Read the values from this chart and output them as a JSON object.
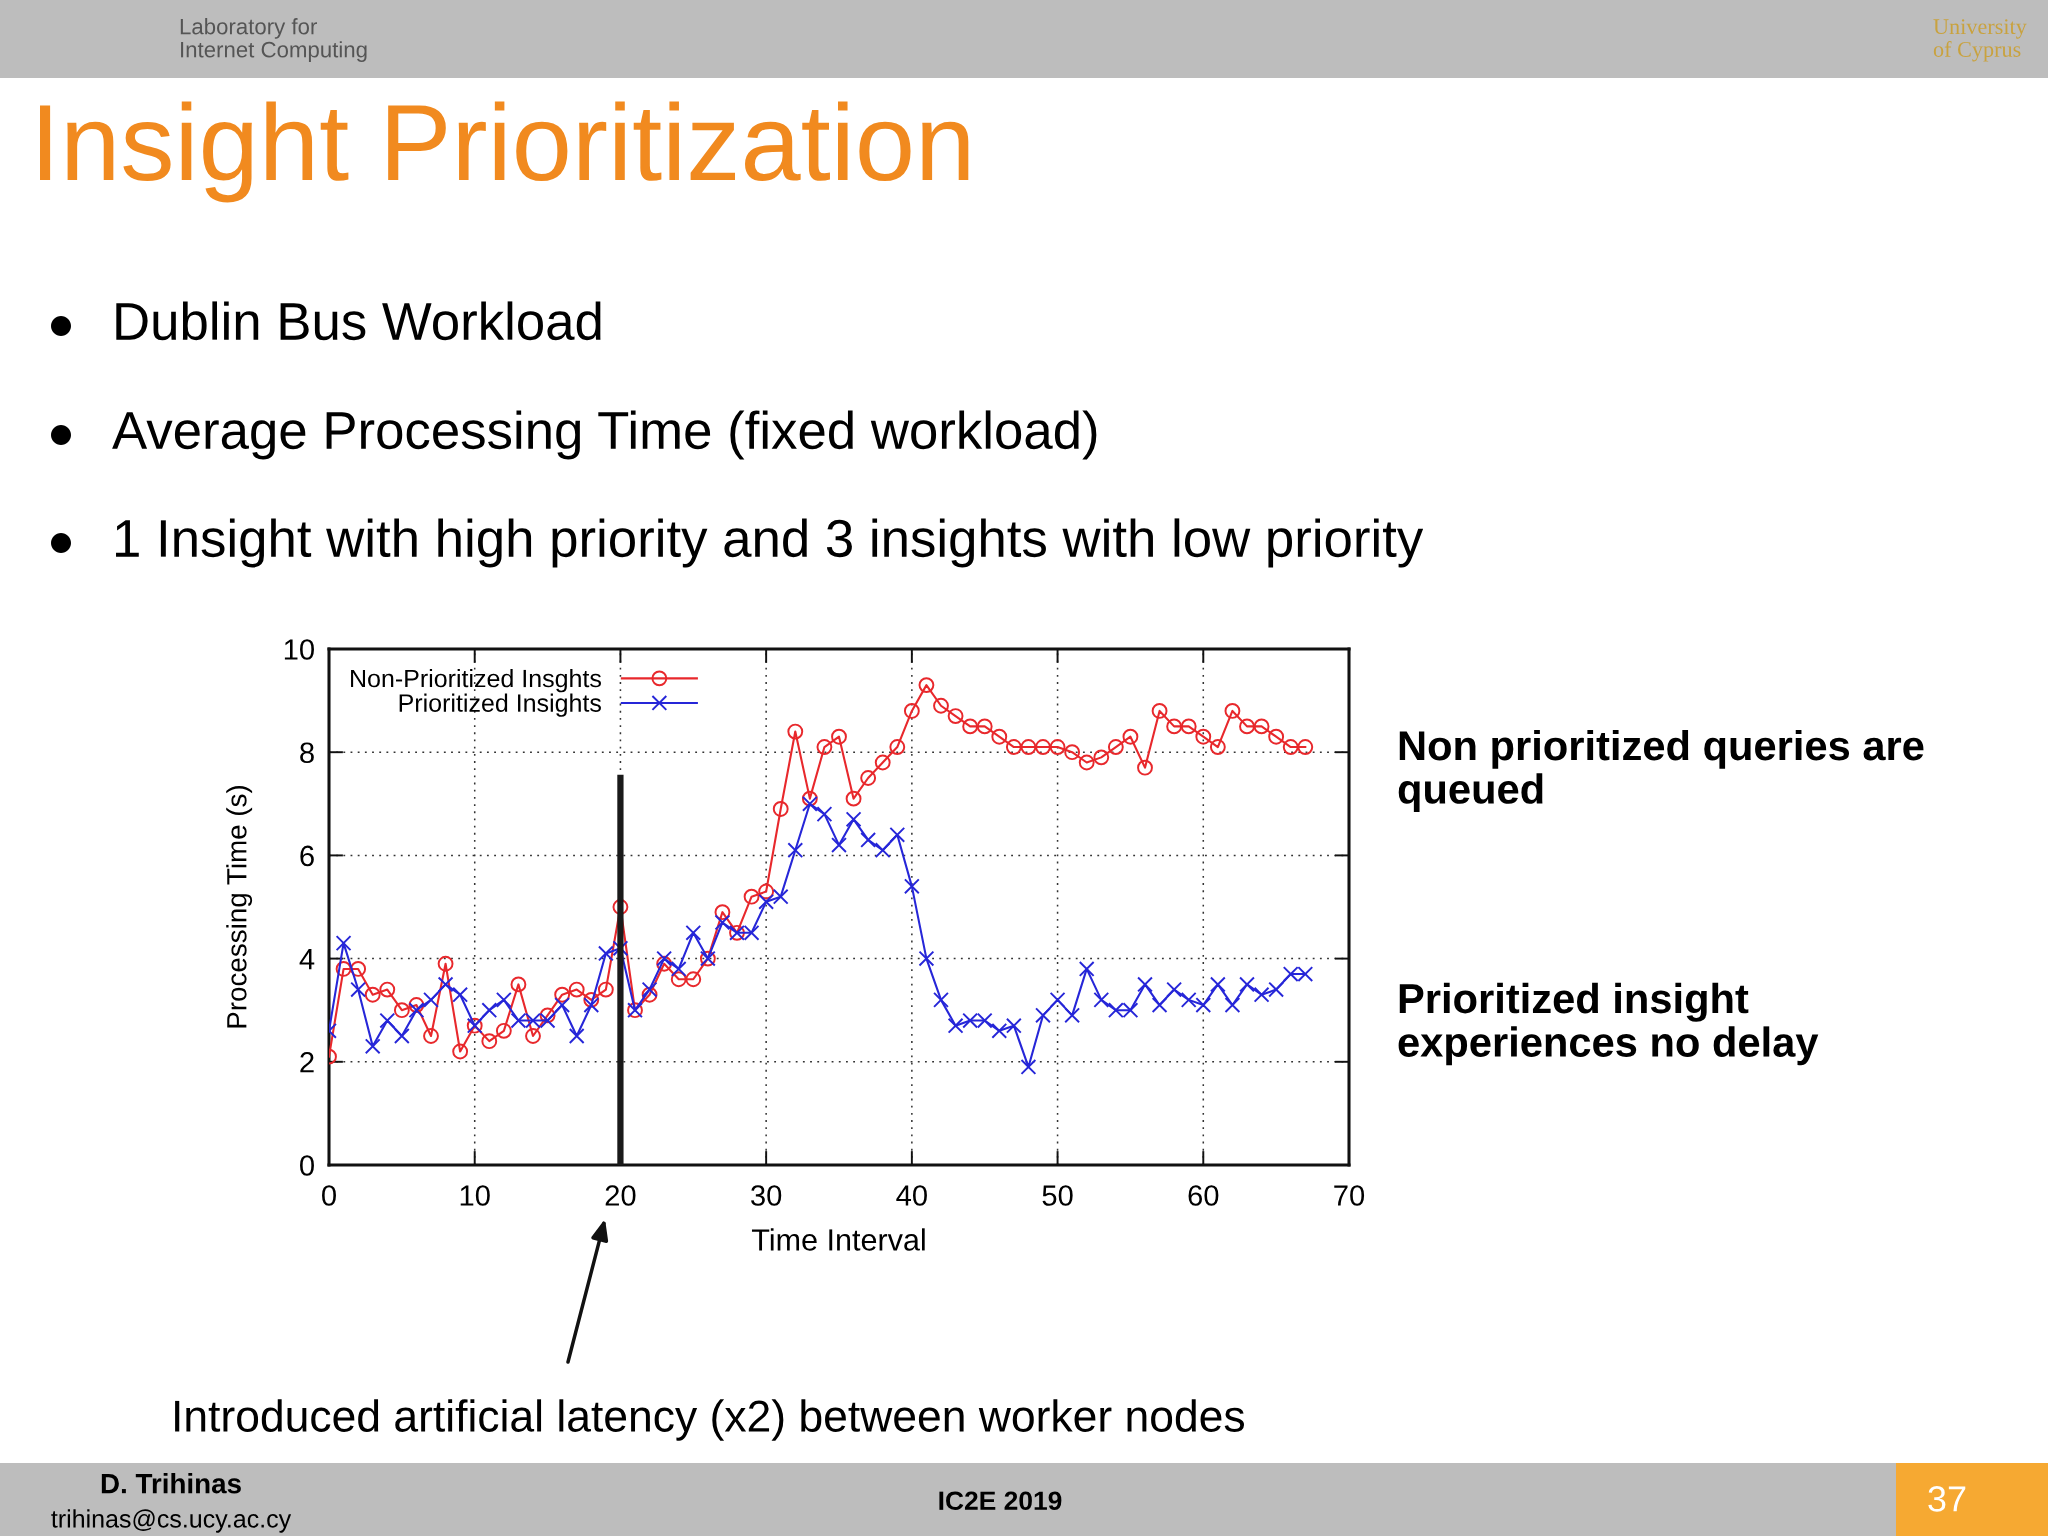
{
  "chart_data": {
    "type": "line",
    "title": "Insight Prioritization",
    "xlabel": "Time Interval",
    "ylabel": "Processing Time (s)",
    "x": [
      0,
      1,
      2,
      3,
      4,
      5,
      6,
      7,
      8,
      9,
      10,
      11,
      12,
      13,
      14,
      15,
      16,
      17,
      18,
      19,
      20,
      21,
      22,
      23,
      24,
      25,
      26,
      27,
      28,
      29,
      30,
      31,
      32,
      33,
      34,
      35,
      36,
      37,
      38,
      39,
      40,
      41,
      42,
      43,
      44,
      45,
      46,
      47,
      48,
      49,
      50,
      51,
      52,
      53,
      54,
      55,
      56,
      57,
      58,
      59,
      60,
      61,
      62,
      63,
      64,
      65,
      66,
      67
    ],
    "series": [
      {
        "name": "Non-Prioritized Insghts",
        "color": "#e8282c",
        "marker": "circle",
        "values": [
          2.1,
          3.8,
          3.8,
          3.3,
          3.4,
          3.0,
          3.1,
          2.5,
          3.9,
          2.2,
          2.7,
          2.4,
          2.6,
          3.5,
          2.5,
          2.9,
          3.3,
          3.4,
          3.2,
          3.4,
          5.0,
          3.0,
          3.3,
          3.9,
          3.6,
          3.6,
          4.0,
          4.9,
          4.5,
          5.2,
          5.3,
          6.9,
          8.4,
          7.1,
          8.1,
          8.3,
          7.1,
          7.5,
          7.8,
          8.1,
          8.8,
          9.3,
          8.9,
          8.7,
          8.5,
          8.5,
          8.3,
          8.1,
          8.1,
          8.1,
          8.1,
          8.0,
          7.8,
          7.9,
          8.1,
          8.3,
          7.7,
          8.8,
          8.5,
          8.5,
          8.3,
          8.1,
          8.8,
          8.5,
          8.5,
          8.3,
          8.1,
          8.1
        ]
      },
      {
        "name": "Prioritized Insights",
        "color": "#2626d8",
        "marker": "cross",
        "values": [
          2.6,
          4.3,
          3.4,
          2.3,
          2.8,
          2.5,
          3.0,
          3.2,
          3.5,
          3.3,
          2.7,
          3.0,
          3.2,
          2.8,
          2.8,
          2.8,
          3.1,
          2.5,
          3.1,
          4.1,
          4.2,
          3.0,
          3.4,
          4.0,
          3.8,
          4.5,
          4.0,
          4.7,
          4.5,
          4.5,
          5.1,
          5.2,
          6.1,
          7.0,
          6.8,
          6.2,
          6.7,
          6.3,
          6.1,
          6.4,
          5.4,
          4.0,
          3.2,
          2.7,
          2.8,
          2.8,
          2.6,
          2.7,
          1.9,
          2.9,
          3.2,
          2.9,
          3.8,
          3.2,
          3.0,
          3.0,
          3.5,
          3.1,
          3.4,
          3.2,
          3.1,
          3.5,
          3.1,
          3.5,
          3.3,
          3.4,
          3.7,
          3.7
        ]
      },
      {
        "type": "line",
        "x": [
          20,
          20
        ],
        "values": [
          0,
          7.5
        ],
        "color": "#1a1a1a",
        "marker": "none"
      }
    ],
    "xlim": [
      0,
      70
    ],
    "xticks": [
      0,
      10,
      20,
      30,
      40,
      50,
      60,
      70
    ],
    "ylim": [
      0,
      10
    ],
    "yticks": [
      0,
      2,
      4,
      6,
      8,
      10
    ],
    "grid": true,
    "legend": "top left",
    "line_style": "solid",
    "annotations": [
      "Dublin Bus Workload",
      "Average Processing Time (fixed workload)",
      "1 Insight with high priority and 3 insights with low priority",
      "Non prioritized queries are\nqueued",
      "Prioritized insight\nexperiences no delay",
      "Introduced artificial latency (x2) between worker nodes",
      "Laboratory for\nInternet Computing",
      "University\nof Cyprus",
      "D. Trihinas",
      "trihinas@cs.ucy.ac.cy",
      "IC2E 2019",
      "37"
    ]
  }
}
